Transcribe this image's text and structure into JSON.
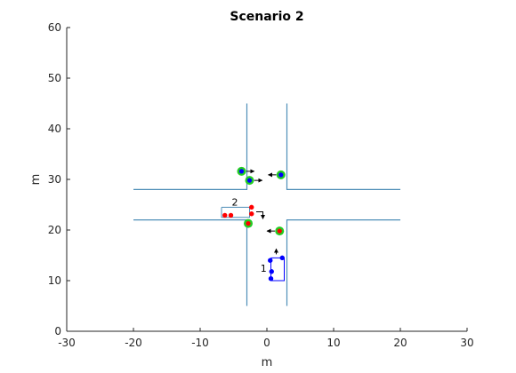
{
  "chart_data": {
    "type": "scatter",
    "title": "Scenario 2",
    "xlabel": "m",
    "ylabel": "m",
    "xlim": [
      -30,
      30
    ],
    "ylim": [
      0,
      60
    ],
    "xticks": [
      -30,
      -20,
      -10,
      0,
      10,
      20,
      30
    ],
    "yticks": [
      0,
      10,
      20,
      30,
      40,
      50,
      60
    ],
    "xtick_labels": [
      "-30",
      "-20",
      "-10",
      "0",
      "10",
      "20",
      "30"
    ],
    "ytick_labels": [
      "0",
      "10",
      "20",
      "30",
      "40",
      "50",
      "60"
    ],
    "grid": false,
    "legend": false,
    "colors": {
      "road": "#4f8fb8",
      "group1": "#0000ff",
      "group2": "#ff0000",
      "highlight": "#22cc22",
      "box1": "#0000ff",
      "box2": "#4f8fb8",
      "axis": "#262626"
    },
    "roads": [
      {
        "x": [
          -3,
          -3,
          -20
        ],
        "y": [
          45,
          28,
          28
        ]
      },
      {
        "x": [
          3,
          3,
          20
        ],
        "y": [
          45,
          28,
          28
        ]
      },
      {
        "x": [
          -20,
          -3,
          -3
        ],
        "y": [
          22,
          22,
          5
        ]
      },
      {
        "x": [
          20,
          3,
          3
        ],
        "y": [
          22,
          22,
          5
        ]
      }
    ],
    "groups": [
      {
        "label": "1",
        "label_pos": [
          -0.5,
          12.5
        ],
        "color": "#0000ff",
        "points": [
          [
            0.5,
            14
          ],
          [
            2.3,
            14.5
          ],
          [
            0.7,
            11.8
          ],
          [
            0.6,
            10.4
          ]
        ],
        "box": {
          "x": [
            0.6,
            2.6,
            2.6,
            0.6,
            0.6
          ],
          "y": [
            14.5,
            14.5,
            10,
            10,
            14.5
          ]
        },
        "arrows": [
          {
            "from": [
              1.4,
              15.2
            ],
            "to": [
              1.4,
              16.3
            ]
          }
        ]
      },
      {
        "label": "2",
        "label_pos": [
          -4.8,
          25.5
        ],
        "color": "#ff0000",
        "points": [
          [
            -2.3,
            24.5
          ],
          [
            -2.3,
            23.2
          ],
          [
            -6.3,
            22.9
          ],
          [
            -5.4,
            22.9
          ]
        ],
        "box": {
          "x": [
            -6.8,
            -2.6,
            -2.6,
            -6.8,
            -6.8
          ],
          "y": [
            24.5,
            24.5,
            22.5,
            22.5,
            24.5
          ]
        },
        "arrows": [
          {
            "from": [
              -1.6,
              23.6
            ],
            "to": [
              -0.6,
              23.6
            ],
            "elbow_to": [
              -0.6,
              22.2
            ]
          }
        ]
      }
    ],
    "highlighted_agents": [
      {
        "x": -3.8,
        "y": 31.6,
        "core": "#0000ff",
        "arrow_dx": 1.2,
        "arrow_dy": 0
      },
      {
        "x": -2.6,
        "y": 29.8,
        "core": "#0000ff",
        "arrow_dx": 1.2,
        "arrow_dy": 0
      },
      {
        "x": 2.1,
        "y": 30.9,
        "core": "#0000ff",
        "arrow_dx": -1.2,
        "arrow_dy": 0
      },
      {
        "x": -2.8,
        "y": 21.3,
        "core": "#ff0000",
        "arrow_dx": 0,
        "arrow_dy": 0
      },
      {
        "x": 1.9,
        "y": 19.8,
        "core": "#ff0000",
        "arrow_dx": -1.2,
        "arrow_dy": 0
      }
    ]
  }
}
